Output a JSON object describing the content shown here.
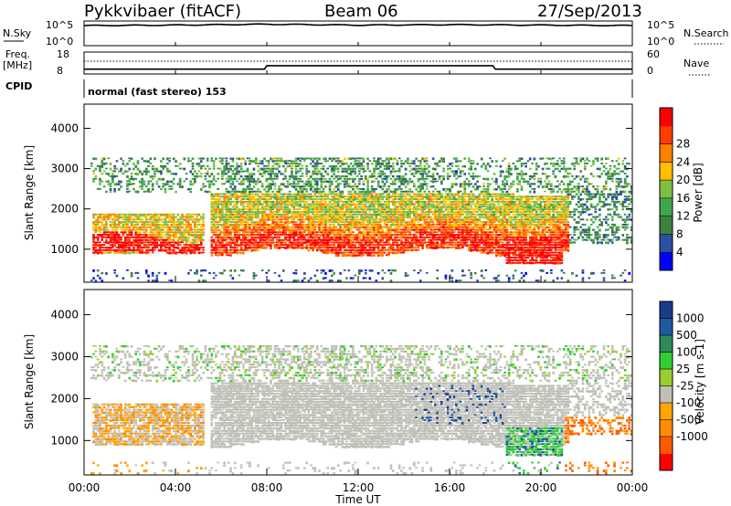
{
  "header": {
    "station": "Pykkvibaer (fitACF)",
    "beam": "Beam 06",
    "date": "27/Sep/2013"
  },
  "noise_panel": {
    "left_label": "N.Sky",
    "right_label": "N.Search",
    "left_ticks": [
      "10^5",
      "10^0"
    ],
    "right_ticks": [
      "10^5",
      "10^0"
    ]
  },
  "freq_panel": {
    "left_label": "Freq.",
    "left_unit": "[MHz]",
    "right_label": "Nave",
    "left_ticks": [
      "18",
      "8"
    ],
    "right_ticks": [
      "60",
      "0"
    ]
  },
  "cpid": {
    "label": "CPID",
    "mode": "normal (fast stereo) 153"
  },
  "x_axis": {
    "label": "Time UT",
    "ticks": [
      "00:00",
      "04:00",
      "08:00",
      "12:00",
      "16:00",
      "20:00",
      "00:00"
    ]
  },
  "colors": {
    "power": [
      "#0000ff",
      "#2d4fa0",
      "#3f7f3f",
      "#3fa64f",
      "#7fbf3f",
      "#ffbf00",
      "#ff7f00",
      "#ff3f00",
      "#ff0000"
    ],
    "velocity": [
      "#ff0000",
      "#ff5a00",
      "#ff8c00",
      "#ffa500",
      "#c0c0b8",
      "#9acd32",
      "#32cd32",
      "#2d8b57",
      "#1e5aa0",
      "#1a3c8c"
    ]
  },
  "chart_data": [
    {
      "type": "line",
      "title": "N.Sky / N.Search",
      "x": [
        0,
        4,
        8,
        12,
        16,
        20,
        24
      ],
      "series": [
        {
          "name": "N.Sky",
          "values": [
            4.2,
            4.3,
            4.5,
            4.3,
            4.4,
            4.3,
            4.2
          ]
        }
      ],
      "ylim": [
        0,
        5
      ],
      "ylabel": "N.Sky"
    },
    {
      "type": "line",
      "title": "Freq. / Nave",
      "x": [
        0,
        1.3,
        7.9,
        8.0,
        17.9,
        18.0,
        24
      ],
      "series": [
        {
          "name": "Freq.",
          "values": [
            10.2,
            10.2,
            10.2,
            11.8,
            11.8,
            10.2,
            10.2
          ]
        }
      ],
      "ylim": [
        8,
        18
      ],
      "ylabel": "Freq. [MHz]"
    },
    {
      "type": "heatmap",
      "title": "Power",
      "ylabel": "Slant Range [km]",
      "xlabel": "Time UT",
      "xlim": [
        0,
        24
      ],
      "ylim": [
        180,
        4600
      ],
      "yticks": [
        1000,
        2000,
        3000,
        4000
      ],
      "colorbar": {
        "label": "Power [dB]",
        "ticks": [
          4,
          8,
          12,
          16,
          20,
          24,
          28
        ]
      }
    },
    {
      "type": "heatmap",
      "title": "Velocity",
      "ylabel": "Slant Range [km]",
      "xlabel": "Time UT",
      "xlim": [
        0,
        24
      ],
      "ylim": [
        180,
        4600
      ],
      "yticks": [
        1000,
        2000,
        3000,
        4000
      ],
      "colorbar": {
        "label": "Velocity [m s-1]",
        "ticks": [
          1000,
          500,
          100,
          25,
          -25,
          -100,
          -500,
          -1000
        ]
      }
    }
  ]
}
